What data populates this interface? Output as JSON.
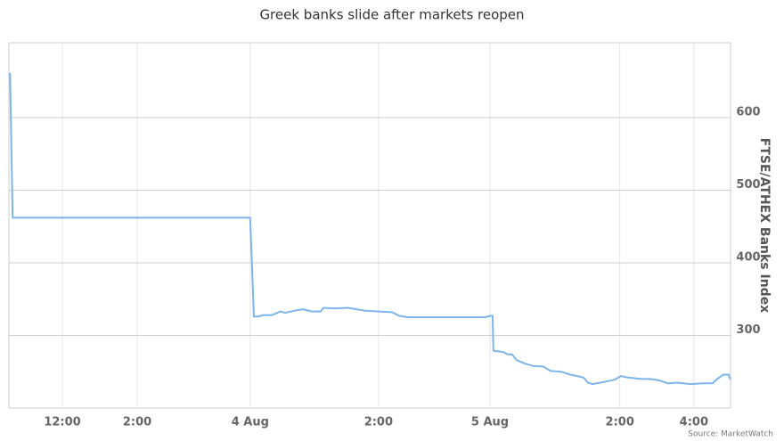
{
  "chart_data": {
    "type": "line",
    "title": "Greek banks slide after markets reopen",
    "y_axis_label": "FTSE/ATHEX Banks Index",
    "source": "Source: MarketWatch",
    "x": [
      10.57,
      10.6,
      10.67,
      17.02,
      17.12,
      17.24,
      17.36,
      17.6,
      17.83,
      17.95,
      18.19,
      18.43,
      18.67,
      18.9,
      18.98,
      19.26,
      19.62,
      19.86,
      20.1,
      20.45,
      20.81,
      21.0,
      21.24,
      21.52,
      22.24,
      23.31,
      23.43,
      23.5,
      23.52,
      23.79,
      23.9,
      24.02,
      24.14,
      24.38,
      24.57,
      24.86,
      25.05,
      25.33,
      25.57,
      25.76,
      25.93,
      26.05,
      26.17,
      26.48,
      26.76,
      26.93,
      27.12,
      27.48,
      27.71,
      27.95,
      28.19,
      28.43,
      28.79,
      29.14,
      29.38,
      29.5,
      29.67,
      29.81,
      29.86
    ],
    "series": [
      {
        "name": "FTSE/ATHEX Banks Index",
        "color": "#7cb5ec",
        "values": [
          660,
          660,
          462,
          462,
          326,
          326,
          328,
          328,
          333,
          331,
          334,
          336,
          333,
          333,
          338,
          337,
          338,
          336,
          334,
          333,
          332,
          327,
          325,
          325,
          325,
          325,
          327,
          327,
          279,
          277,
          274,
          274,
          266,
          261,
          258,
          257,
          251,
          250,
          246,
          244,
          242,
          235,
          233,
          236,
          239,
          244,
          242,
          240,
          240,
          238,
          234,
          235,
          233,
          234,
          234,
          240,
          246,
          246,
          239
        ]
      }
    ],
    "xlim": [
      10.57,
      29.86
    ],
    "xticks": [
      {
        "value": 12,
        "label": "12:00"
      },
      {
        "value": 14,
        "label": "2:00"
      },
      {
        "value": 17.02,
        "label": "4 Aug"
      },
      {
        "value": 20.45,
        "label": "2:00"
      },
      {
        "value": 23.43,
        "label": "5 Aug"
      },
      {
        "value": 26.9,
        "label": "2:00"
      },
      {
        "value": 28.88,
        "label": "4:00"
      }
    ],
    "ylim": [
      200,
      703
    ],
    "yticks": [
      300,
      400,
      500,
      600
    ],
    "grid": true
  }
}
